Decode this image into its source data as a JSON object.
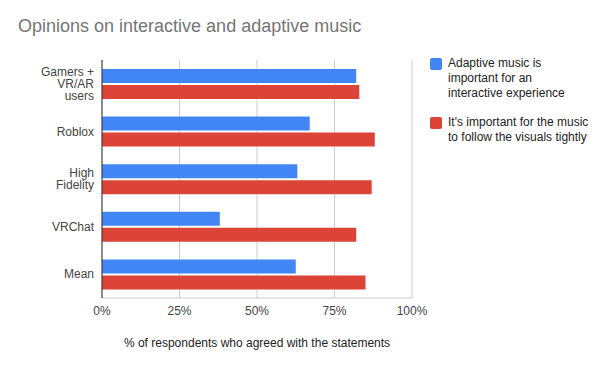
{
  "chart_data": {
    "type": "bar",
    "orientation": "horizontal",
    "title": "Opinions on interactive and adaptive music",
    "x_label": "% of respondents who agreed with the statements",
    "categories": [
      "Gamers + VR/AR users",
      "Roblox",
      "High Fidelity",
      "VRChat",
      "Mean"
    ],
    "series": [
      {
        "name": "Adaptive music is important for an interactive experience",
        "color": "#4285f4",
        "values": [
          82,
          67,
          63,
          38,
          62.5
        ]
      },
      {
        "name": "It's important for the music to follow the visuals tightly",
        "color": "#db4437",
        "values": [
          83,
          88,
          87,
          82,
          85
        ]
      }
    ],
    "xlim": [
      0,
      100
    ],
    "xticks": [
      {
        "value": 0,
        "label": "0%"
      },
      {
        "value": 25,
        "label": "25%"
      },
      {
        "value": 50,
        "label": "50%"
      },
      {
        "value": 75,
        "label": "75%"
      },
      {
        "value": 100,
        "label": "100%"
      }
    ],
    "grid": true,
    "legend": "right"
  }
}
